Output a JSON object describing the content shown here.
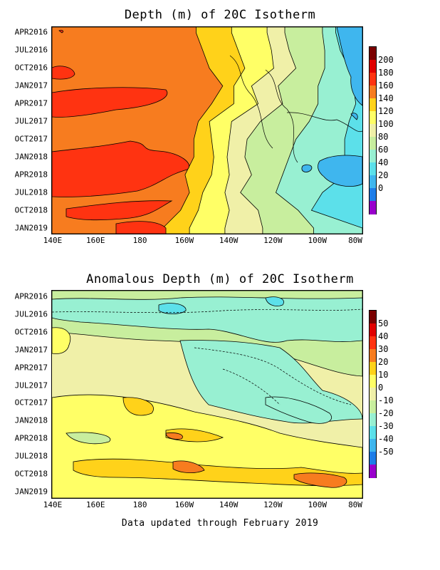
{
  "footer": "Data updated through February 2019",
  "y_ticks": [
    "APR2016",
    "JUL2016",
    "OCT2016",
    "JAN2017",
    "APR2017",
    "JUL2017",
    "OCT2017",
    "JAN2018",
    "APR2018",
    "JUL2018",
    "OCT2018",
    "JAN2019"
  ],
  "x_ticks": [
    "140E",
    "160E",
    "180",
    "160W",
    "140W",
    "120W",
    "100W",
    "80W"
  ],
  "chart_data": [
    {
      "type": "heatmap",
      "title": "Depth (m) of 20C Isotherm",
      "x_axis": [
        "140E",
        "160E",
        "180",
        "160W",
        "140W",
        "120W",
        "100W",
        "80W"
      ],
      "y_axis": [
        "APR2016",
        "JUL2016",
        "OCT2016",
        "JAN2017",
        "APR2017",
        "JUL2017",
        "OCT2017",
        "JAN2018",
        "APR2018",
        "JUL2018",
        "OCT2018",
        "JAN2019"
      ],
      "colorbar_labels": [
        "200",
        "180",
        "160",
        "140",
        "120",
        "100",
        "80",
        "60",
        "40",
        "20",
        "0"
      ],
      "colors": [
        "#7a0000",
        "#e00000",
        "#ff3311",
        "#f77c1f",
        "#ffd21a",
        "#ffff66",
        "#f0f0a8",
        "#c8ee9e",
        "#98f0d2",
        "#5ce0ea",
        "#3fb6ee",
        "#1e7de8",
        "#9900cc"
      ],
      "band_edges_deg_east": [
        {
          "month": "APR2016",
          "edges": [
            205,
            221,
            237,
            245,
            262,
            268
          ]
        },
        {
          "month": "JUL2016",
          "edges": [
            208,
            224,
            239,
            247,
            263,
            270
          ]
        },
        {
          "month": "OCT2016",
          "edges": [
            211,
            227,
            240,
            250,
            263,
            274
          ]
        },
        {
          "month": "JAN2017",
          "edges": [
            217,
            222,
            230,
            242,
            260,
            276
          ]
        },
        {
          "month": "APR2017",
          "edges": [
            212,
            222,
            233,
            244,
            260,
            277
          ]
        },
        {
          "month": "JUL2017",
          "edges": [
            206,
            211,
            221,
            234,
            256,
            274
          ]
        },
        {
          "month": "OCT2017",
          "edges": [
            204,
            212,
            220,
            228,
            250,
            272
          ]
        },
        {
          "month": "JAN2018",
          "edges": [
            204,
            213,
            219,
            227,
            247,
            272
          ]
        },
        {
          "month": "APR2018",
          "edges": [
            200,
            212,
            220,
            230,
            244,
            272
          ]
        },
        {
          "month": "JUL2018",
          "edges": [
            202,
            208,
            218,
            225,
            241,
            262
          ]
        },
        {
          "month": "OCT2018",
          "edges": [
            198,
            206,
            220,
            233,
            251,
            257
          ]
        },
        {
          "month": "JAN2019",
          "edges": [
            190,
            202,
            218,
            235,
            258,
            280
          ]
        }
      ]
    },
    {
      "type": "heatmap",
      "title": "Anomalous Depth (m) of 20C Isotherm",
      "x_axis": [
        "140E",
        "160E",
        "180",
        "160W",
        "140W",
        "120W",
        "100W",
        "80W"
      ],
      "y_axis": [
        "APR2016",
        "JUL2016",
        "OCT2016",
        "JAN2017",
        "APR2017",
        "JUL2017",
        "OCT2017",
        "JAN2018",
        "APR2018",
        "JUL2018",
        "OCT2018",
        "JAN2019"
      ],
      "colorbar_labels": [
        "50",
        "40",
        "30",
        "20",
        "10",
        "0",
        "-10",
        "-20",
        "-30",
        "-40",
        "-50"
      ],
      "colors": [
        "#7a0000",
        "#e00000",
        "#ff3311",
        "#f77c1f",
        "#ffd21a",
        "#ffff66",
        "#f0f0a8",
        "#c8ee9e",
        "#98f0d2",
        "#5ce0ea",
        "#3fb6ee",
        "#1e7de8",
        "#9900cc"
      ]
    }
  ]
}
